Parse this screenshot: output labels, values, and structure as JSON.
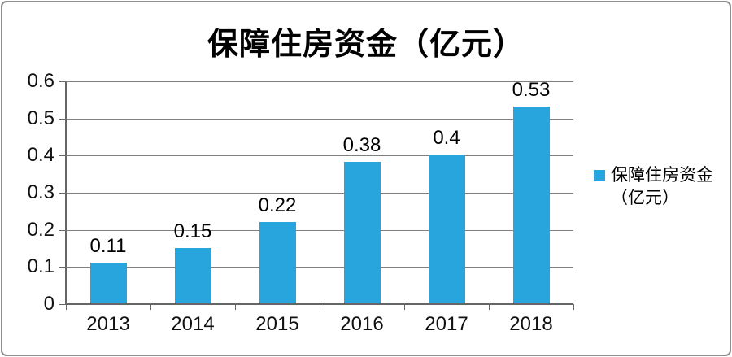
{
  "chart_data": {
    "type": "bar",
    "title": "保障住房资金（亿元）",
    "categories": [
      "2013",
      "2014",
      "2015",
      "2016",
      "2017",
      "2018"
    ],
    "values": [
      0.11,
      0.15,
      0.22,
      0.38,
      0.4,
      0.53
    ],
    "data_labels": [
      "0.11",
      "0.15",
      "0.22",
      "0.38",
      "0.4",
      "0.53"
    ],
    "xlabel": "",
    "ylabel": "",
    "ylim": [
      0,
      0.6
    ],
    "ytick_labels": [
      "0",
      "0.1",
      "0.2",
      "0.3",
      "0.4",
      "0.5",
      "0.6"
    ],
    "grid": true,
    "legend": {
      "position": "right",
      "lines": [
        "保障住房资金",
        "（亿元）"
      ],
      "swatch_color": "#29A5DE"
    },
    "bar_color": "#29A5DE"
  },
  "colors": {
    "bar": "#29A5DE",
    "gridline": "#7F7F7F",
    "axis": "#666666",
    "text": "#000000",
    "frame_border": "#8E8E8E",
    "background": "#FFFFFF"
  }
}
